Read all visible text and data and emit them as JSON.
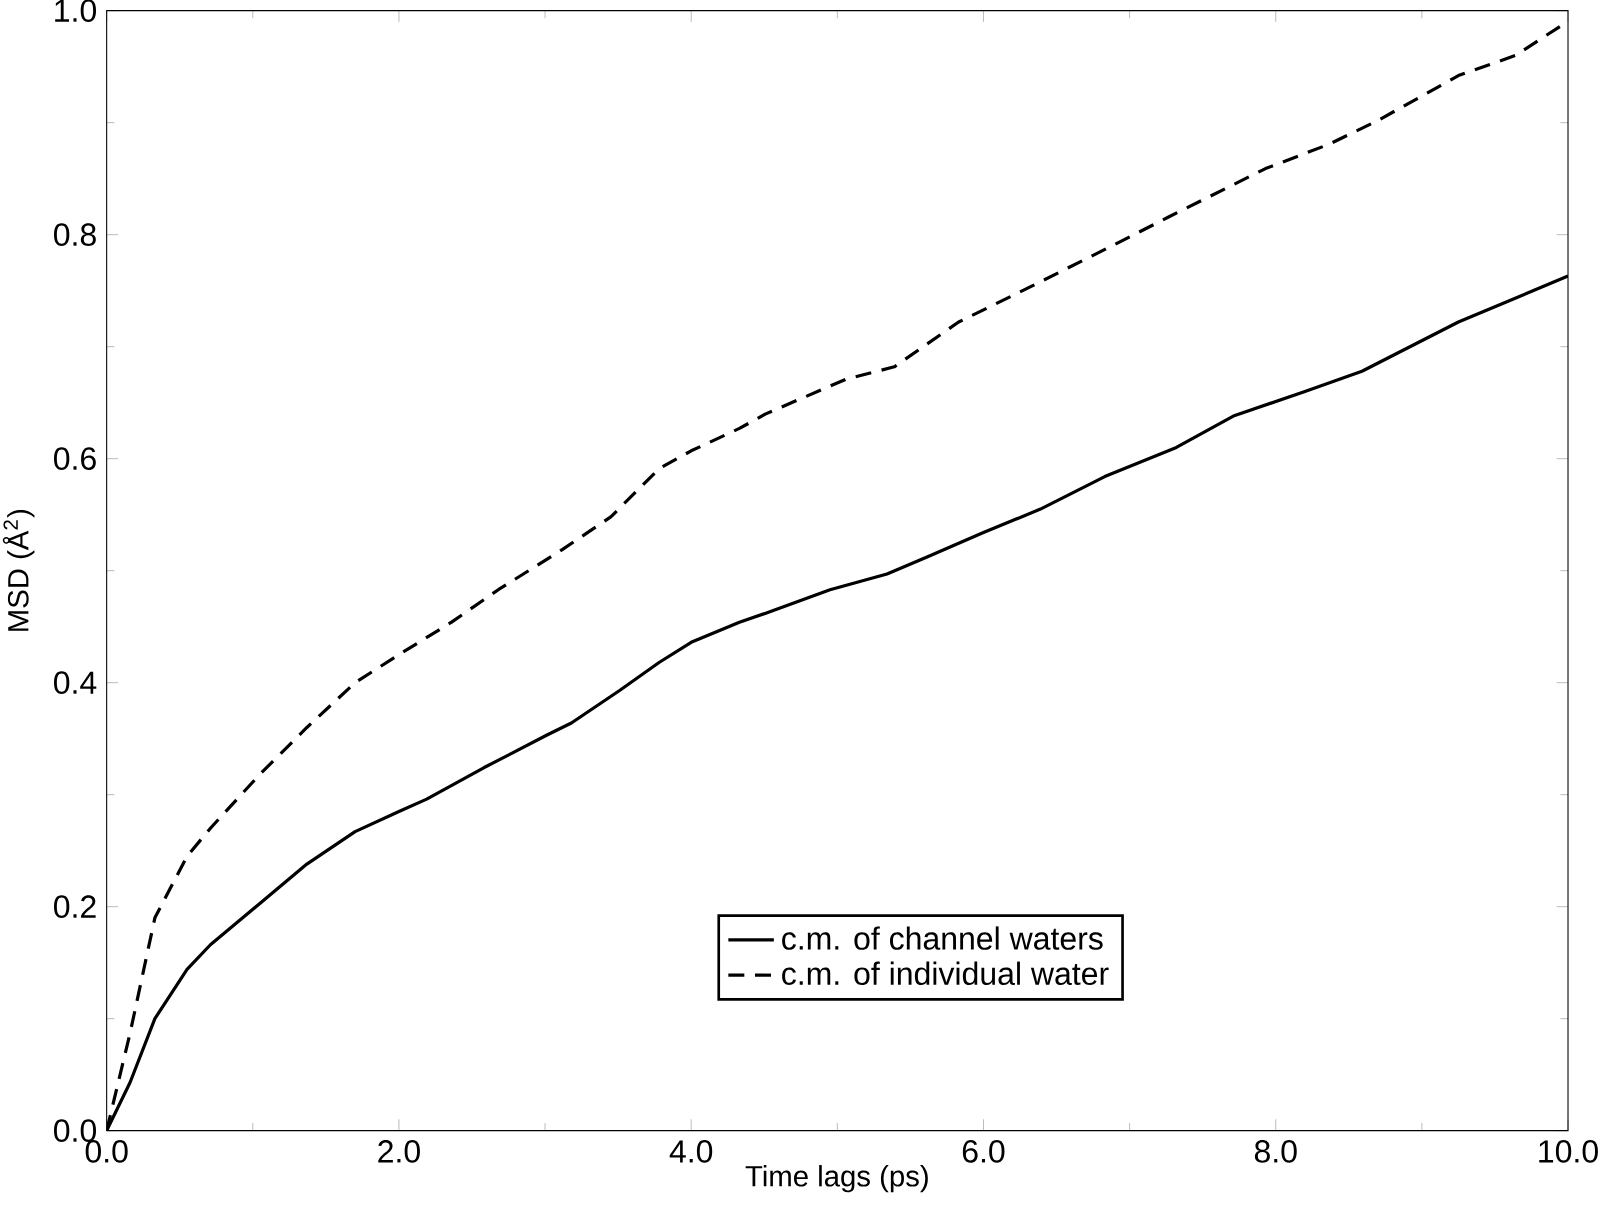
{
  "chart_data": {
    "type": "line",
    "xlabel": "Time lags (ps)",
    "ylabel": "MSD (Å$^{2}$)",
    "xlim": [
      0,
      10
    ],
    "ylim": [
      0,
      1.0
    ],
    "xticks": [
      {
        "value": 0,
        "label": "0.0"
      },
      {
        "value": 2,
        "label": "2.0"
      },
      {
        "value": 4,
        "label": "4.0"
      },
      {
        "value": 6,
        "label": "6.0"
      },
      {
        "value": 8,
        "label": "8.0"
      },
      {
        "value": 10,
        "label": "10.0"
      }
    ],
    "yticks": [
      {
        "value": 0,
        "label": "0.0"
      },
      {
        "value": 0.2,
        "label": "0.2"
      },
      {
        "value": 0.4,
        "label": "0.4"
      },
      {
        "value": 0.6,
        "label": "0.6"
      },
      {
        "value": 0.8,
        "label": "0.8"
      },
      {
        "value": 1.0,
        "label": "1.0"
      }
    ],
    "grid": false,
    "legend": "bottom",
    "marker": "none",
    "series": [
      {
        "name": "c.m. of channel waters",
        "color": "#000000",
        "line_style": "solid",
        "x": [
          0,
          0.16,
          0.33,
          0.55,
          0.71,
          1.04,
          1.37,
          1.7,
          2.0,
          2.19,
          2.58,
          3.01,
          3.18,
          3.51,
          3.78,
          4.0,
          4.33,
          4.51,
          4.95,
          5.34,
          5.61,
          6.0,
          6.39,
          6.83,
          7.32,
          7.71,
          8.2,
          8.59,
          9.25,
          10.0
        ],
        "values": [
          0,
          0.043,
          0.1,
          0.144,
          0.166,
          0.202,
          0.238,
          0.267,
          0.285,
          0.296,
          0.324,
          0.353,
          0.364,
          0.393,
          0.418,
          0.436,
          0.454,
          0.462,
          0.483,
          0.497,
          0.512,
          0.534,
          0.555,
          0.584,
          0.61,
          0.638,
          0.66,
          0.678,
          0.722,
          0.763
        ]
      },
      {
        "name": "c.m. of individual water",
        "color": "#000000",
        "line_style": "dashed",
        "x": [
          0,
          0.16,
          0.33,
          0.55,
          0.71,
          1.04,
          1.37,
          1.7,
          2.0,
          2.36,
          2.68,
          3.12,
          3.45,
          3.78,
          4.0,
          4.33,
          4.51,
          5.06,
          5.39,
          5.83,
          6.33,
          6.94,
          7.27,
          7.93,
          8.37,
          8.7,
          9.25,
          9.64,
          9.97
        ],
        "values": [
          0,
          0.087,
          0.19,
          0.245,
          0.27,
          0.317,
          0.36,
          0.4,
          0.425,
          0.454,
          0.483,
          0.519,
          0.548,
          0.591,
          0.607,
          0.627,
          0.64,
          0.671,
          0.682,
          0.722,
          0.754,
          0.794,
          0.816,
          0.859,
          0.881,
          0.902,
          0.942,
          0.96,
          0.988
        ]
      }
    ]
  }
}
